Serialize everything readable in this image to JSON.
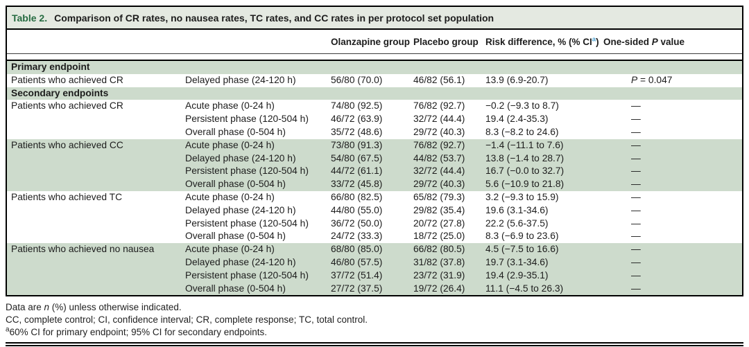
{
  "title": {
    "label": "Table 2.",
    "text": "Comparison of CR rates, no nausea rates, TC rates, and CC rates in per protocol set population"
  },
  "header": {
    "olanzapine": "Olanzapine group",
    "placebo": "Placebo group",
    "risk_pre": "Risk difference, % (% CI",
    "risk_sup": "a",
    "risk_post": ")",
    "pvalue_pre": "One-sided ",
    "pvalue_italic": "P",
    "pvalue_post": " value"
  },
  "rows": [
    {
      "kind": "section",
      "label": "Primary endpoint"
    },
    {
      "endpoint": "Patients who achieved CR",
      "phase": "Delayed phase (24-120 h)",
      "olanzapine": "56/80 (70.0)",
      "placebo": "46/82 (56.1)",
      "risk": "13.9 (6.9-20.7)",
      "p_italic": "P",
      "p_text": " = 0.047"
    },
    {
      "kind": "section",
      "label": "Secondary endpoints"
    },
    {
      "endpoint": "Patients who achieved CR",
      "phase": "Acute phase (0-24 h)",
      "olanzapine": "74/80 (92.5)",
      "placebo": "76/82 (92.7)",
      "risk": "−0.2 (−9.3 to 8.7)",
      "p_text": "—"
    },
    {
      "endpoint": "",
      "phase": "Persistent phase (120-504 h)",
      "olanzapine": "46/72 (63.9)",
      "placebo": "32/72 (44.4)",
      "risk": "19.4 (2.4-35.3)",
      "p_text": "—"
    },
    {
      "endpoint": "",
      "phase": "Overall phase (0-504 h)",
      "olanzapine": "35/72 (48.6)",
      "placebo": "29/72 (40.3)",
      "risk": "8.3 (−8.2 to 24.6)",
      "p_text": "—"
    },
    {
      "endpoint": "Patients who achieved CC",
      "phase": "Acute phase (0-24 h)",
      "olanzapine": "73/80 (91.3)",
      "placebo": "76/82 (92.7)",
      "risk": "−1.4 (−11.1 to 7.6)",
      "p_text": "—"
    },
    {
      "endpoint": "",
      "phase": "Delayed phase (24-120 h)",
      "olanzapine": "54/80 (67.5)",
      "placebo": "44/82 (53.7)",
      "risk": "13.8 (−1.4 to 28.7)",
      "p_text": "—"
    },
    {
      "endpoint": "",
      "phase": "Persistent phase (120-504 h)",
      "olanzapine": "44/72 (61.1)",
      "placebo": "32/72 (44.4)",
      "risk": "16.7 (−0.0 to 32.7)",
      "p_text": "—"
    },
    {
      "endpoint": "",
      "phase": "Overall phase (0-504 h)",
      "olanzapine": "33/72 (45.8)",
      "placebo": "29/72 (40.3)",
      "risk": "5.6 (−10.9 to 21.8)",
      "p_text": "—"
    },
    {
      "endpoint": "Patients who achieved TC",
      "phase": "Acute phase (0-24 h)",
      "olanzapine": "66/80 (82.5)",
      "placebo": "65/82 (79.3)",
      "risk": "3.2 (−9.3 to 15.9)",
      "p_text": "—"
    },
    {
      "endpoint": "",
      "phase": "Delayed phase (24-120 h)",
      "olanzapine": "44/80 (55.0)",
      "placebo": "29/82 (35.4)",
      "risk": "19.6 (3.1-34.6)",
      "p_text": "—"
    },
    {
      "endpoint": "",
      "phase": "Persistent phase (120-504 h)",
      "olanzapine": "36/72 (50.0)",
      "placebo": "20/72 (27.8)",
      "risk": "22.2 (5.6-37.5)",
      "p_text": "—"
    },
    {
      "endpoint": "",
      "phase": "Overall phase (0-504 h)",
      "olanzapine": "24/72 (33.3)",
      "placebo": "18/72 (25.0)",
      "risk": "8.3 (−6.9 to 23.6)",
      "p_text": "—"
    },
    {
      "endpoint": "Patients who achieved no nausea",
      "phase": "Acute phase (0-24 h)",
      "olanzapine": "68/80 (85.0)",
      "placebo": "66/82 (80.5)",
      "risk": "4.5 (−7.5 to 16.6)",
      "p_text": "—"
    },
    {
      "endpoint": "",
      "phase": "Delayed phase (24-120 h)",
      "olanzapine": "46/80 (57.5)",
      "placebo": "31/82 (37.8)",
      "risk": "19.7 (3.1-34.6)",
      "p_text": "—"
    },
    {
      "endpoint": "",
      "phase": "Persistent phase (120-504 h)",
      "olanzapine": "37/72 (51.4)",
      "placebo": "23/72 (31.9)",
      "risk": "19.4 (2.9-35.1)",
      "p_text": "—"
    },
    {
      "endpoint": "",
      "phase": "Overall phase (0-504 h)",
      "olanzapine": "27/72 (37.5)",
      "placebo": "19/72 (26.4)",
      "risk": "11.1 (−4.5 to 26.3)",
      "p_text": "—"
    }
  ],
  "footnotes": {
    "line1_pre": "Data are ",
    "line1_italic": "n",
    "line1_post": " (%) unless otherwise indicated.",
    "line2": "CC, complete control; CI, confidence interval; CR, complete response; TC, total control.",
    "line3_sup": "a",
    "line3_text": "60% CI for primary endpoint; 95% CI for secondary endpoints."
  },
  "colors": {
    "band_green": "#cddbcc",
    "title_bar": "#e4e9e1",
    "table_label_green": "#266b41",
    "superscript_blue": "#4ba1d1"
  }
}
